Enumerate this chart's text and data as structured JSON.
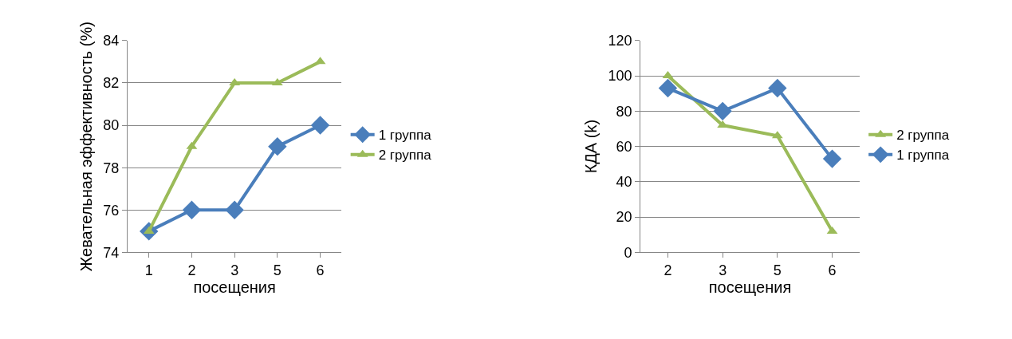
{
  "chart_data": [
    {
      "type": "line",
      "xlabel": "посещения",
      "ylabel": "Жевательная эффективность (%)",
      "categories": [
        "1",
        "2",
        "3",
        "5",
        "6"
      ],
      "ylim": [
        74,
        84
      ],
      "yticks": [
        74,
        76,
        78,
        80,
        82,
        84
      ],
      "grid": "y",
      "legend": "right",
      "series": [
        {
          "name": "1 группа",
          "color": "#4a7ebb",
          "marker": "diamond",
          "values": [
            75,
            76,
            76,
            79,
            80
          ]
        },
        {
          "name": "2 группа",
          "color": "#9bbb59",
          "marker": "triangle",
          "values": [
            75,
            79,
            82,
            82,
            83
          ]
        }
      ]
    },
    {
      "type": "line",
      "xlabel": "посещения",
      "ylabel": "КДА (k)",
      "categories": [
        "2",
        "3",
        "5",
        "6"
      ],
      "ylim": [
        0,
        120
      ],
      "yticks": [
        0,
        20,
        40,
        60,
        80,
        100,
        120
      ],
      "grid": "y",
      "legend": "right",
      "series": [
        {
          "name": "2 группа",
          "color": "#9bbb59",
          "marker": "triangle",
          "values": [
            100,
            72,
            66,
            12
          ]
        },
        {
          "name": "1 группа",
          "color": "#4a7ebb",
          "marker": "diamond",
          "values": [
            93,
            80,
            93,
            53
          ]
        }
      ]
    }
  ]
}
